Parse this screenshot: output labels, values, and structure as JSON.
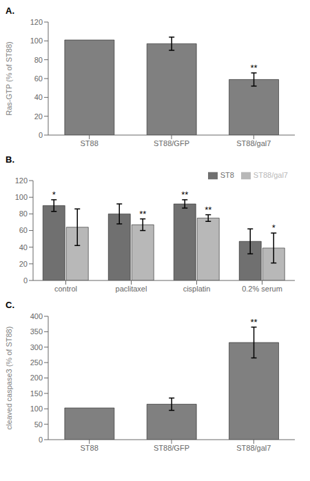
{
  "chart_data": [
    {
      "type": "bar",
      "title": "A.",
      "categories": [
        "ST88",
        "ST88/GFP",
        "ST88/gal7"
      ],
      "values": [
        101,
        97,
        59
      ],
      "errors": [
        0,
        7,
        7
      ],
      "annotations": [
        null,
        null,
        "**"
      ],
      "color": "#808080",
      "ylabel": "Ras-GTP (% of ST88)",
      "ylim": [
        0,
        120
      ],
      "yticks": [
        0,
        20,
        40,
        60,
        80,
        100,
        120
      ],
      "grid": false
    },
    {
      "type": "bar",
      "title": "B.",
      "categories": [
        "control",
        "paclitaxel",
        "cisplatin",
        "0.2% serum"
      ],
      "series": [
        {
          "name": "ST8",
          "color": "#707070",
          "values": [
            90,
            80,
            92,
            47
          ],
          "errors": [
            7,
            12,
            5,
            15
          ],
          "annotations": [
            "*",
            null,
            "**",
            null
          ]
        },
        {
          "name": "ST88/gal7",
          "color": "#b8b8b8",
          "values": [
            64,
            67,
            75,
            39
          ],
          "errors": [
            22,
            7,
            4,
            18
          ],
          "annotations": [
            null,
            "**",
            "**",
            "*"
          ]
        }
      ],
      "ylim": [
        0,
        120
      ],
      "yticks": [
        0,
        20,
        40,
        60,
        80,
        100,
        120
      ],
      "legend": "upper right",
      "grid": false
    },
    {
      "type": "bar",
      "title": "C.",
      "categories": [
        "ST88",
        "ST88/GFP",
        "ST88/gal7"
      ],
      "values": [
        103,
        115,
        315
      ],
      "errors": [
        0,
        20,
        50
      ],
      "annotations": [
        null,
        null,
        "**"
      ],
      "color": "#808080",
      "ylabel": "cleaved caspase3 (% of ST88)",
      "ylim": [
        0,
        400
      ],
      "yticks": [
        0,
        50,
        100,
        150,
        200,
        250,
        300,
        350,
        400
      ],
      "grid": false
    }
  ]
}
